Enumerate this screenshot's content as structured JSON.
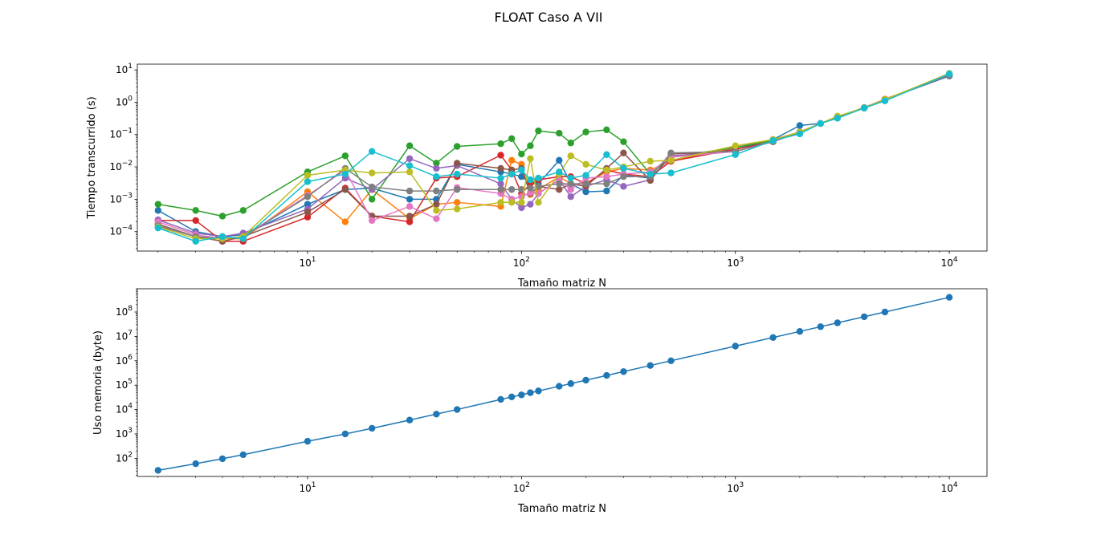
{
  "figure": {
    "title": "FLOAT Caso A VII"
  },
  "chart_data": [
    {
      "type": "line",
      "xlabel": "Tamaño matriz N",
      "ylabel": "Tiempo transcurrido (s)",
      "xscale": "log",
      "yscale": "log",
      "xlim": [
        1.6,
        15000
      ],
      "ylim": [
        2.5e-05,
        15
      ],
      "x_ticks": [
        10,
        100,
        1000,
        10000
      ],
      "y_ticks": [
        0.0001,
        0.001,
        0.01,
        0.1,
        1,
        10
      ],
      "x_tick_labels": [
        {
          "base": "10",
          "exp": "1"
        },
        {
          "base": "10",
          "exp": "2"
        },
        {
          "base": "10",
          "exp": "3"
        },
        {
          "base": "10",
          "exp": "4"
        }
      ],
      "y_tick_labels": [
        {
          "base": "10",
          "exp": "−4"
        },
        {
          "base": "10",
          "exp": "−3"
        },
        {
          "base": "10",
          "exp": "−2"
        },
        {
          "base": "10",
          "exp": "−1"
        },
        {
          "base": "10",
          "exp": "0"
        },
        {
          "base": "10",
          "exp": "1"
        }
      ],
      "grid": false,
      "x": [
        2,
        3,
        4,
        5,
        10,
        15,
        20,
        30,
        40,
        50,
        80,
        90,
        100,
        110,
        120,
        150,
        170,
        200,
        250,
        300,
        400,
        500,
        1000,
        1500,
        2000,
        2500,
        3000,
        4000,
        5000,
        10000
      ],
      "series": [
        {
          "color": "#1f77b4",
          "values": [
            0.00045,
            0.0001,
            7e-05,
            8e-05,
            0.0007,
            0.002,
            0.0022,
            0.001,
            0.001,
            0.012,
            0.007,
            0.006,
            0.005,
            0.0032,
            0.003,
            0.016,
            0.003,
            0.0017,
            0.0018,
            0.0055,
            0.0045,
            0.02,
            0.035,
            0.07,
            0.19,
            0.22,
            0.34,
            0.66,
            1.2,
            6.5
          ]
        },
        {
          "color": "#ff7f0e",
          "values": [
            0.00015,
            7e-05,
            6e-05,
            6e-05,
            0.0017,
            0.0002,
            0.002,
            0.00025,
            0.0007,
            0.0008,
            0.0006,
            0.016,
            0.012,
            0.0014,
            0.002,
            0.005,
            0.003,
            0.003,
            0.007,
            0.009,
            0.008,
            0.015,
            0.04,
            0.07,
            0.12,
            0.22,
            0.36,
            0.68,
            1.25,
            7.0
          ]
        },
        {
          "color": "#2ca02c",
          "values": [
            0.0007,
            0.00045,
            0.0003,
            0.00045,
            0.007,
            0.022,
            0.001,
            0.045,
            0.013,
            0.043,
            0.052,
            0.075,
            0.025,
            0.045,
            0.13,
            0.11,
            0.055,
            0.12,
            0.14,
            0.06,
            0.006,
            0.02,
            0.04,
            0.065,
            0.12,
            0.22,
            0.35,
            0.68,
            1.2,
            7.2
          ]
        },
        {
          "color": "#d62728",
          "values": [
            0.00022,
            0.00022,
            5e-05,
            5e-05,
            0.00028,
            0.0022,
            0.0003,
            0.0002,
            0.0045,
            0.005,
            0.023,
            0.008,
            0.0015,
            0.003,
            0.004,
            0.005,
            0.005,
            0.003,
            0.008,
            0.006,
            0.005,
            0.015,
            0.035,
            0.06,
            0.12,
            0.22,
            0.34,
            0.66,
            1.2,
            6.8
          ]
        },
        {
          "color": "#9467bd",
          "values": [
            0.00023,
            9e-05,
            7e-05,
            9e-05,
            0.0005,
            0.0045,
            0.002,
            0.018,
            0.009,
            0.011,
            0.003,
            0.001,
            0.00055,
            0.0007,
            0.0015,
            0.004,
            0.0012,
            0.0025,
            0.004,
            0.0025,
            0.004,
            0.022,
            0.03,
            0.06,
            0.12,
            0.22,
            0.34,
            0.66,
            1.2,
            7.0
          ]
        },
        {
          "color": "#8c564b",
          "values": [
            0.00017,
            7e-05,
            5e-05,
            7e-05,
            0.0004,
            0.002,
            0.0003,
            0.0003,
            0.0007,
            0.013,
            0.009,
            0.008,
            0.009,
            0.0015,
            0.0025,
            0.002,
            0.003,
            0.0025,
            0.009,
            0.027,
            0.0038,
            0.025,
            0.03,
            0.06,
            0.12,
            0.22,
            0.34,
            0.66,
            1.2,
            6.8
          ]
        },
        {
          "color": "#e377c2",
          "values": [
            0.0002,
            8e-05,
            6e-05,
            7e-05,
            0.0013,
            0.008,
            0.00022,
            0.0006,
            0.00025,
            0.0023,
            0.0015,
            0.001,
            0.0012,
            0.0016,
            0.0015,
            0.004,
            0.002,
            0.0045,
            0.005,
            0.006,
            0.007,
            0.02,
            0.03,
            0.06,
            0.12,
            0.22,
            0.34,
            0.66,
            1.2,
            7.0
          ]
        },
        {
          "color": "#7f7f7f",
          "values": [
            0.00015,
            7e-05,
            6e-05,
            7e-05,
            0.0012,
            0.009,
            0.0024,
            0.0018,
            0.0018,
            0.002,
            0.002,
            0.002,
            0.002,
            0.0022,
            0.0025,
            0.003,
            0.003,
            0.003,
            0.003,
            0.005,
            0.005,
            0.027,
            0.03,
            0.06,
            0.12,
            0.22,
            0.34,
            0.66,
            1.2,
            7.0
          ]
        },
        {
          "color": "#bcbd22",
          "values": [
            0.00014,
            6e-05,
            6e-05,
            7e-05,
            0.0055,
            0.008,
            0.0065,
            0.007,
            0.00045,
            0.0005,
            0.0008,
            0.0008,
            0.0008,
            0.018,
            0.0008,
            0.006,
            0.022,
            0.012,
            0.008,
            0.01,
            0.015,
            0.016,
            0.045,
            0.07,
            0.12,
            0.22,
            0.37,
            0.66,
            1.2,
            7.8
          ]
        },
        {
          "color": "#17becf",
          "values": [
            0.00013,
            5e-05,
            7e-05,
            6e-05,
            0.0035,
            0.006,
            0.03,
            0.011,
            0.005,
            0.006,
            0.0045,
            0.006,
            0.008,
            0.004,
            0.0045,
            0.007,
            0.0045,
            0.0055,
            0.024,
            0.009,
            0.006,
            0.0065,
            0.024,
            0.065,
            0.105,
            0.22,
            0.32,
            0.66,
            1.1,
            7.5
          ]
        }
      ]
    },
    {
      "type": "line",
      "xlabel": "Tamaño matriz N",
      "ylabel": "Uso memoria (byte)",
      "xscale": "log",
      "yscale": "log",
      "xlim": [
        1.6,
        15000
      ],
      "ylim": [
        18,
        900000000
      ],
      "x_ticks": [
        10,
        100,
        1000,
        10000
      ],
      "y_ticks": [
        100,
        1000,
        10000,
        100000,
        1000000,
        10000000,
        100000000
      ],
      "x_tick_labels": [
        {
          "base": "10",
          "exp": "1"
        },
        {
          "base": "10",
          "exp": "2"
        },
        {
          "base": "10",
          "exp": "3"
        },
        {
          "base": "10",
          "exp": "4"
        }
      ],
      "y_tick_labels": [
        {
          "base": "10",
          "exp": "2"
        },
        {
          "base": "10",
          "exp": "3"
        },
        {
          "base": "10",
          "exp": "4"
        },
        {
          "base": "10",
          "exp": "5"
        },
        {
          "base": "10",
          "exp": "6"
        },
        {
          "base": "10",
          "exp": "7"
        },
        {
          "base": "10",
          "exp": "8"
        }
      ],
      "grid": false,
      "x": [
        2,
        3,
        4,
        5,
        10,
        15,
        20,
        30,
        40,
        50,
        80,
        90,
        100,
        110,
        120,
        150,
        170,
        200,
        250,
        300,
        400,
        500,
        1000,
        1500,
        2000,
        2500,
        3000,
        4000,
        5000,
        10000
      ],
      "series": [
        {
          "color": "#1f77b4",
          "values": [
            32,
            60,
            96,
            140,
            500,
            1000,
            1700,
            3700,
            6500,
            10000,
            26000,
            33000,
            40000,
            49000,
            58000,
            90000,
            116000,
            160000,
            250000,
            360000,
            640000,
            1000000,
            4000000,
            9000000,
            16000000,
            25000000,
            36000000,
            64000000,
            100000000,
            400000000
          ]
        }
      ]
    }
  ]
}
